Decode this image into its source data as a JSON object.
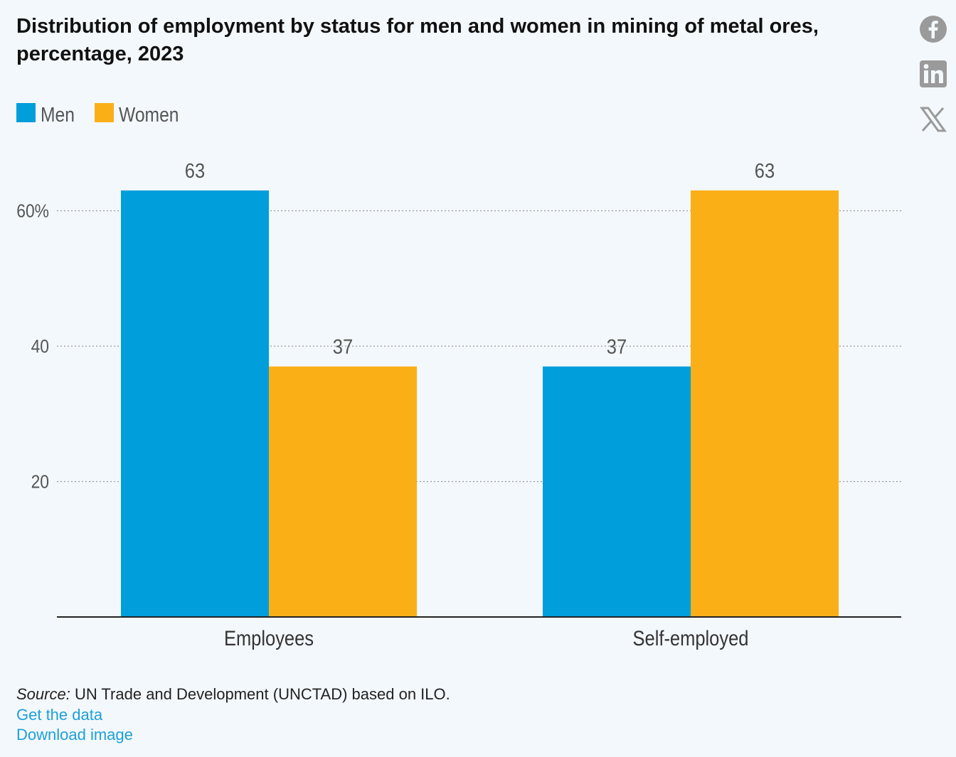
{
  "title": "Distribution of employment by status for men and women in mining of metal ores, percentage, 2023",
  "colors": {
    "men": "#009edb",
    "women": "#fbaf17",
    "grid": "#9a9a9a",
    "axis": "#222222",
    "link": "#1e9fd8"
  },
  "share": {
    "facebook_icon": "facebook-icon",
    "linkedin_icon": "linkedin-icon",
    "x_icon": "x-icon"
  },
  "chart_data": {
    "type": "bar",
    "title": "Distribution of employment by status for men and women in mining of metal ores, percentage, 2023",
    "categories": [
      "Employees",
      "Self-employed"
    ],
    "series": [
      {
        "name": "Men",
        "values": [
          63,
          37
        ]
      },
      {
        "name": "Women",
        "values": [
          37,
          63
        ]
      }
    ],
    "yticks": [
      20,
      40,
      60
    ],
    "ytick_labels": [
      "20",
      "40",
      "60%"
    ],
    "ylim": [
      0,
      70
    ],
    "xlabel": "",
    "ylabel": "",
    "grid": true,
    "legend": "top-left"
  },
  "source": {
    "label": "Source:",
    "text": " UN Trade and Development (UNCTAD) based on ILO."
  },
  "links": {
    "get_data": "Get the data",
    "download": "Download image"
  }
}
